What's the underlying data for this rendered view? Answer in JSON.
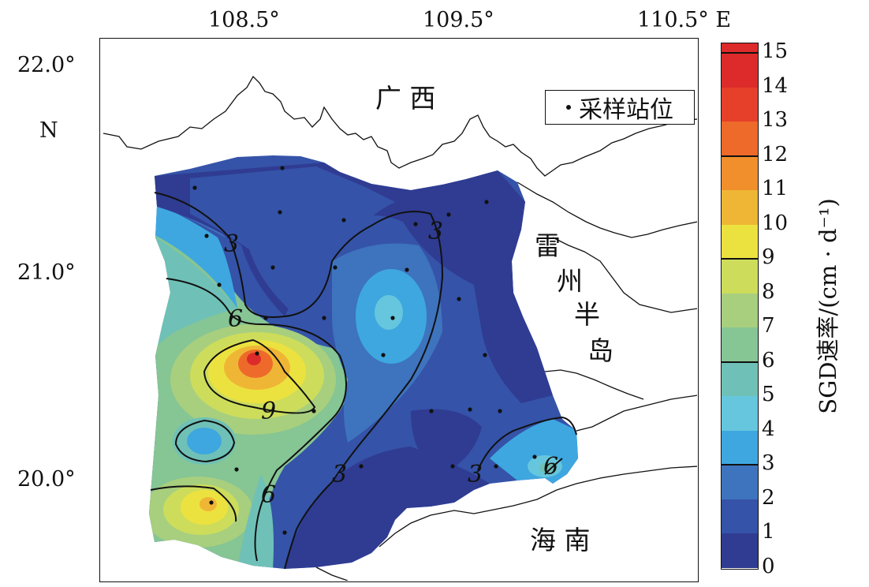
{
  "map": {
    "lon_ticks": [
      "108.5°",
      "109.5°",
      "110.5° E"
    ],
    "lat_ticks": [
      "22.0°",
      "21.0°",
      "20.0°"
    ],
    "lat_hemisphere": "N",
    "regions": {
      "guangxi": "广 西",
      "leizhou_1": "雷",
      "leizhou_2": "州",
      "leizhou_3": "半",
      "leizhou_4": "岛",
      "hainan": "海 南"
    },
    "legend_label": "采样站位",
    "contour_labels": [
      "3",
      "3",
      "6",
      "9",
      "6",
      "3",
      "3",
      "6"
    ],
    "colorbar": {
      "title": "SGD速率/(cm · d⁻¹)",
      "ticks": [
        "15",
        "14",
        "13",
        "12",
        "11",
        "10",
        "9",
        "8",
        "7",
        "6",
        "5",
        "4",
        "3",
        "2",
        "1",
        "0"
      ],
      "major_ticks": [
        3,
        6,
        9,
        12,
        15
      ],
      "colors": [
        "#2f3c92",
        "#3553a8",
        "#3e73be",
        "#3ea7e0",
        "#66c6dd",
        "#6fc1b7",
        "#86c594",
        "#a7cf7e",
        "#cddd5b",
        "#ece23f",
        "#efb635",
        "#f08f2b",
        "#ee6a2a",
        "#e63f2a",
        "#dc2b2a"
      ]
    }
  }
}
